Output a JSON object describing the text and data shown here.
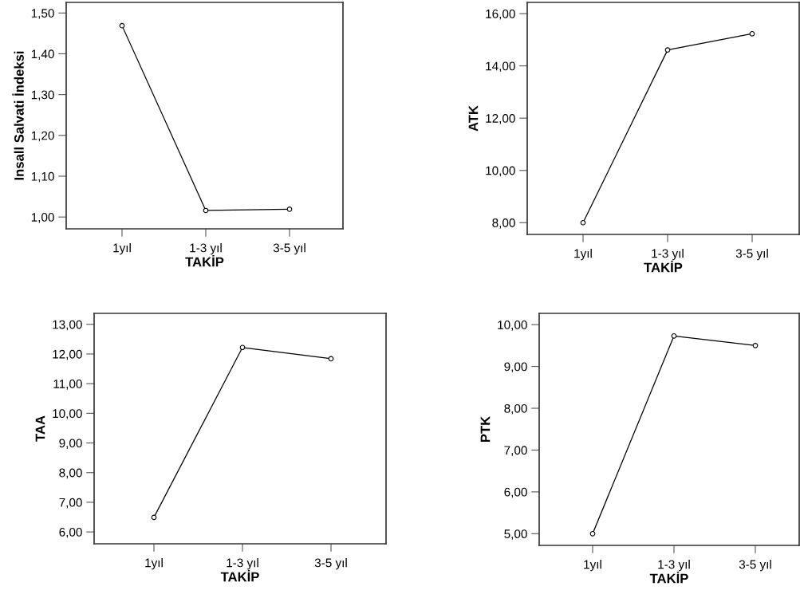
{
  "chart_data": [
    {
      "type": "line",
      "categories": [
        "1yıl",
        "1-3 yıl",
        "3-5 yıl"
      ],
      "xlabel": "TAKİP",
      "ylabel": "Insall Salvati İndeksi",
      "values": [
        1.469,
        1.016,
        1.019
      ],
      "color": "#000000",
      "marker": "circle",
      "line_style": "solid",
      "grid": false,
      "legend": false,
      "ylim": [
        0.971,
        1.526
      ],
      "yticks": [
        {
          "value": 1.0,
          "label": "1,00"
        },
        {
          "value": 1.1,
          "label": "1,10"
        },
        {
          "value": 1.2,
          "label": "1,20"
        },
        {
          "value": 1.3,
          "label": "1,30"
        },
        {
          "value": 1.4,
          "label": "1,40"
        },
        {
          "value": 1.5,
          "label": "1,50"
        }
      ]
    },
    {
      "type": "line",
      "categories": [
        "1yıl",
        "1-3 yıl",
        "3-5 yıl"
      ],
      "xlabel": "TAKİP",
      "ylabel": "ATK",
      "values": [
        8.0,
        14.61,
        15.23
      ],
      "color": "#000000",
      "marker": "circle",
      "line_style": "solid",
      "grid": false,
      "legend": false,
      "ylim": [
        7.55,
        16.43
      ],
      "yticks": [
        {
          "value": 8,
          "label": "8,00"
        },
        {
          "value": 10,
          "label": "10,00"
        },
        {
          "value": 12,
          "label": "12,00"
        },
        {
          "value": 14,
          "label": "14,00"
        },
        {
          "value": 16,
          "label": "16,00"
        }
      ]
    },
    {
      "type": "line",
      "categories": [
        "1yıl",
        "1-3 yıl",
        "3-5 yıl"
      ],
      "xlabel": "TAKİP",
      "ylabel": "TAA",
      "values": [
        6.49,
        12.22,
        11.84
      ],
      "color": "#000000",
      "marker": "circle",
      "line_style": "solid",
      "grid": false,
      "legend": false,
      "ylim": [
        5.6,
        13.37
      ],
      "yticks": [
        {
          "value": 6,
          "label": "6,00"
        },
        {
          "value": 7,
          "label": "7,00"
        },
        {
          "value": 8,
          "label": "8,00"
        },
        {
          "value": 9,
          "label": "9,00"
        },
        {
          "value": 10,
          "label": "10,00"
        },
        {
          "value": 11,
          "label": "11,00"
        },
        {
          "value": 12,
          "label": "12,00"
        },
        {
          "value": 13,
          "label": "13,00"
        }
      ]
    },
    {
      "type": "line",
      "categories": [
        "1yıl",
        "1-3 yıl",
        "3-5 yıl"
      ],
      "xlabel": "TAKİP",
      "ylabel": "PTK",
      "values": [
        5.0,
        9.73,
        9.5
      ],
      "color": "#000000",
      "marker": "circle",
      "line_style": "solid",
      "grid": false,
      "legend": false,
      "ylim": [
        4.72,
        10.27
      ],
      "yticks": [
        {
          "value": 5,
          "label": "5,00"
        },
        {
          "value": 6,
          "label": "6,00"
        },
        {
          "value": 7,
          "label": "7,00"
        },
        {
          "value": 8,
          "label": "8,00"
        },
        {
          "value": 9,
          "label": "9,00"
        },
        {
          "value": 10,
          "label": "10,00"
        }
      ]
    }
  ]
}
